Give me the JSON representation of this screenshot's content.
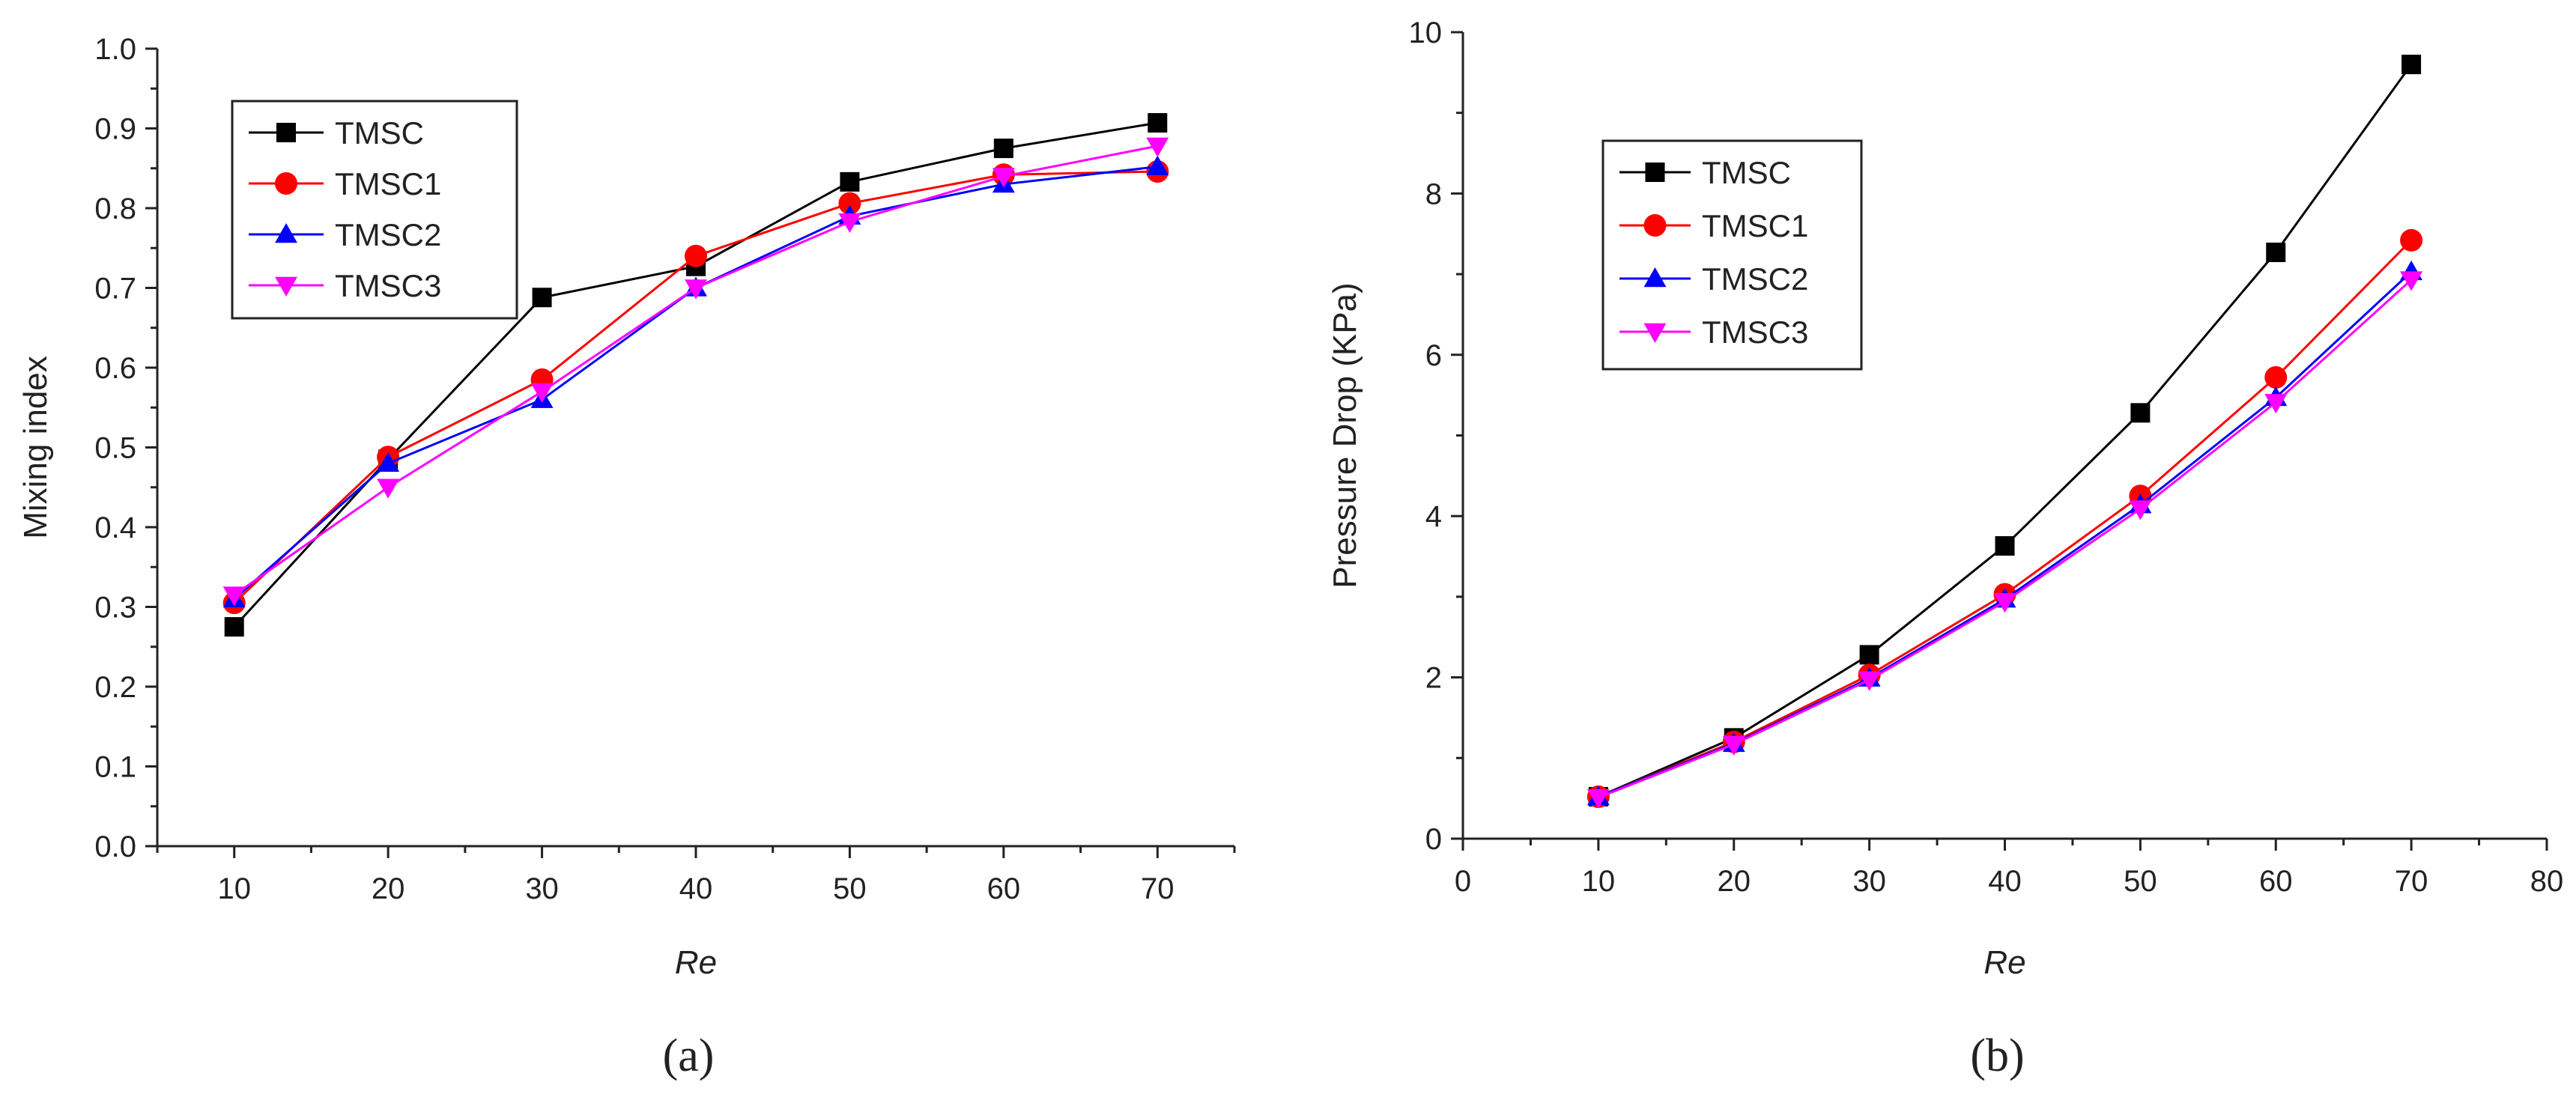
{
  "chart_data": [
    {
      "type": "line",
      "panel_label": "(a)",
      "title": "",
      "xlabel": "Re",
      "ylabel": "Mixing index",
      "xlim": [
        5,
        75
      ],
      "ylim": [
        0.0,
        1.0
      ],
      "xticks": [
        10,
        20,
        30,
        40,
        50,
        60,
        70
      ],
      "xtick_labels": [
        "10",
        "20",
        "30",
        "40",
        "50",
        "60",
        "70"
      ],
      "yticks": [
        0.0,
        0.1,
        0.2,
        0.3,
        0.4,
        0.5,
        0.6,
        0.7,
        0.8,
        0.9,
        1.0
      ],
      "ytick_labels": [
        "0.0",
        "0.1",
        "0.2",
        "0.3",
        "0.4",
        "0.5",
        "0.6",
        "0.7",
        "0.8",
        "0.9",
        "1.0"
      ],
      "grid": false,
      "legend_position": "top-left",
      "x": [
        10,
        20,
        30,
        40,
        50,
        60,
        70
      ],
      "series": [
        {
          "name": "TMSC",
          "color": "#000000",
          "marker": "square",
          "values": [
            0.275,
            0.485,
            0.688,
            0.727,
            0.833,
            0.875,
            0.907
          ]
        },
        {
          "name": "TMSC1",
          "color": "#ff0000",
          "marker": "circle",
          "values": [
            0.305,
            0.488,
            0.585,
            0.74,
            0.806,
            0.842,
            0.846
          ]
        },
        {
          "name": "TMSC2",
          "color": "#0000ff",
          "marker": "triangle-up",
          "values": [
            0.31,
            0.48,
            0.56,
            0.7,
            0.79,
            0.83,
            0.852
          ]
        },
        {
          "name": "TMSC3",
          "color": "#ff00ff",
          "marker": "triangle-down",
          "values": [
            0.315,
            0.45,
            0.57,
            0.7,
            0.783,
            0.84,
            0.878
          ]
        }
      ]
    },
    {
      "type": "line",
      "panel_label": "(b)",
      "title": "",
      "xlabel": "Re",
      "ylabel": "Pressure Drop (KPa)",
      "xlim": [
        0,
        80
      ],
      "ylim": [
        0,
        10
      ],
      "xticks": [
        0,
        10,
        20,
        30,
        40,
        50,
        60,
        70,
        80
      ],
      "xtick_labels": [
        "0",
        "10",
        "20",
        "30",
        "40",
        "50",
        "60",
        "70",
        "80"
      ],
      "yticks": [
        0,
        2,
        4,
        6,
        8,
        10
      ],
      "ytick_labels": [
        "0",
        "2",
        "4",
        "6",
        "8",
        "10"
      ],
      "grid": false,
      "legend_position": "top-left",
      "x": [
        10,
        20,
        30,
        40,
        50,
        60,
        70
      ],
      "series": [
        {
          "name": "TMSC",
          "color": "#000000",
          "marker": "square",
          "values": [
            0.52,
            1.25,
            2.28,
            3.63,
            5.28,
            7.27,
            9.6
          ]
        },
        {
          "name": "TMSC1",
          "color": "#ff0000",
          "marker": "circle",
          "values": [
            0.52,
            1.2,
            2.03,
            3.03,
            4.25,
            5.72,
            7.42
          ]
        },
        {
          "name": "TMSC2",
          "color": "#0000ff",
          "marker": "triangle-up",
          "values": [
            0.52,
            1.18,
            1.99,
            2.97,
            4.14,
            5.47,
            7.03
          ]
        },
        {
          "name": "TMSC3",
          "color": "#ff00ff",
          "marker": "triangle-down",
          "values": [
            0.51,
            1.17,
            1.97,
            2.94,
            4.09,
            5.41,
            6.93
          ]
        }
      ]
    }
  ]
}
